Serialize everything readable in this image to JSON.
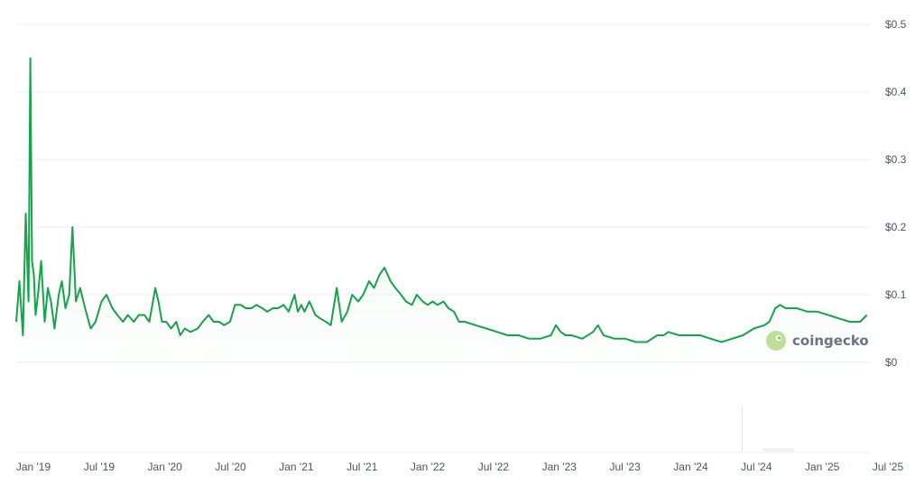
{
  "chart_data": {
    "type": "area",
    "title": "",
    "xlabel": "",
    "ylabel": "",
    "x_ticks": [
      "Jan '19",
      "Jul '19",
      "Jan '20",
      "Jul '20",
      "Jan '21",
      "Jul '21",
      "Jan '22",
      "Jul '22",
      "Jan '23",
      "Jul '23",
      "Jan '24",
      "Jul '24",
      "Jan '25",
      "Jul '25"
    ],
    "y_ticks": [
      "$0",
      "$0.1",
      "$0.2",
      "$0.3",
      "$0.4",
      "$0.5"
    ],
    "ylim": [
      0,
      0.5
    ],
    "xlim": [
      "2018-12-01",
      "2025-07-31"
    ],
    "line_color": "#16a34a",
    "grid": "horizontal",
    "series": [
      {
        "x": [
          "2018-12-01",
          "2018-12-10",
          "2018-12-20",
          "2018-12-28",
          "2019-01-05",
          "2019-01-10",
          "2019-01-15",
          "2019-01-20",
          "2019-01-25",
          "2019-02-01",
          "2019-02-10",
          "2019-02-20",
          "2019-03-01",
          "2019-03-10",
          "2019-03-20",
          "2019-04-01",
          "2019-04-10",
          "2019-04-20",
          "2019-05-01",
          "2019-05-10",
          "2019-05-20",
          "2019-06-01",
          "2019-06-15",
          "2019-07-01",
          "2019-07-15",
          "2019-08-01",
          "2019-08-15",
          "2019-09-01",
          "2019-09-15",
          "2019-10-01",
          "2019-10-15",
          "2019-11-01",
          "2019-11-15",
          "2019-12-01",
          "2019-12-15",
          "2020-01-01",
          "2020-01-10",
          "2020-01-20",
          "2020-02-01",
          "2020-02-15",
          "2020-03-01",
          "2020-03-12",
          "2020-03-25",
          "2020-04-10",
          "2020-05-01",
          "2020-05-15",
          "2020-06-01",
          "2020-06-15",
          "2020-07-01",
          "2020-07-15",
          "2020-08-01",
          "2020-08-15",
          "2020-09-01",
          "2020-09-15",
          "2020-10-01",
          "2020-10-15",
          "2020-11-01",
          "2020-11-15",
          "2020-12-01",
          "2020-12-15",
          "2021-01-01",
          "2021-01-15",
          "2021-02-01",
          "2021-02-10",
          "2021-02-20",
          "2021-03-01",
          "2021-03-15",
          "2021-04-01",
          "2021-04-15",
          "2021-05-01",
          "2021-05-15",
          "2021-06-01",
          "2021-06-15",
          "2021-07-01",
          "2021-07-15",
          "2021-08-01",
          "2021-08-15",
          "2021-09-01",
          "2021-09-15",
          "2021-10-01",
          "2021-10-15",
          "2021-11-01",
          "2021-11-15",
          "2021-12-01",
          "2021-12-15",
          "2022-01-01",
          "2022-01-15",
          "2022-02-01",
          "2022-02-15",
          "2022-03-01",
          "2022-03-15",
          "2022-04-01",
          "2022-04-15",
          "2022-05-01",
          "2022-05-15",
          "2022-06-01",
          "2022-07-01",
          "2022-08-01",
          "2022-09-01",
          "2022-10-01",
          "2022-11-01",
          "2022-12-01",
          "2023-01-01",
          "2023-02-01",
          "2023-02-15",
          "2023-03-01",
          "2023-03-15",
          "2023-04-01",
          "2023-05-01",
          "2023-06-01",
          "2023-06-15",
          "2023-07-01",
          "2023-08-01",
          "2023-09-01",
          "2023-10-01",
          "2023-11-01",
          "2023-12-01",
          "2023-12-20",
          "2024-01-01",
          "2024-02-01",
          "2024-03-01",
          "2024-04-01",
          "2024-05-01",
          "2024-06-01",
          "2024-07-01",
          "2024-08-01",
          "2024-09-01",
          "2024-10-01",
          "2024-10-15",
          "2024-11-01",
          "2024-11-15",
          "2024-12-01",
          "2025-01-01",
          "2025-02-01",
          "2025-03-01",
          "2025-04-01",
          "2025-05-01",
          "2025-06-01",
          "2025-07-01",
          "2025-07-20"
        ],
        "values": [
          0.06,
          0.12,
          0.04,
          0.22,
          0.09,
          0.45,
          0.15,
          0.13,
          0.07,
          0.1,
          0.15,
          0.06,
          0.11,
          0.09,
          0.05,
          0.1,
          0.12,
          0.08,
          0.1,
          0.2,
          0.09,
          0.11,
          0.08,
          0.05,
          0.06,
          0.09,
          0.1,
          0.08,
          0.07,
          0.06,
          0.07,
          0.06,
          0.07,
          0.07,
          0.06,
          0.11,
          0.09,
          0.06,
          0.06,
          0.05,
          0.06,
          0.04,
          0.05,
          0.045,
          0.05,
          0.06,
          0.07,
          0.06,
          0.06,
          0.055,
          0.06,
          0.085,
          0.085,
          0.08,
          0.08,
          0.085,
          0.08,
          0.075,
          0.08,
          0.08,
          0.085,
          0.075,
          0.1,
          0.075,
          0.085,
          0.075,
          0.09,
          0.07,
          0.065,
          0.06,
          0.055,
          0.11,
          0.06,
          0.075,
          0.1,
          0.09,
          0.1,
          0.12,
          0.11,
          0.13,
          0.14,
          0.12,
          0.11,
          0.1,
          0.09,
          0.085,
          0.1,
          0.09,
          0.085,
          0.09,
          0.085,
          0.09,
          0.08,
          0.075,
          0.06,
          0.06,
          0.055,
          0.05,
          0.045,
          0.04,
          0.04,
          0.035,
          0.035,
          0.04,
          0.055,
          0.045,
          0.04,
          0.04,
          0.035,
          0.045,
          0.055,
          0.04,
          0.035,
          0.035,
          0.03,
          0.03,
          0.04,
          0.04,
          0.045,
          0.04,
          0.04,
          0.04,
          0.035,
          0.03,
          0.035,
          0.04,
          0.05,
          0.055,
          0.06,
          0.08,
          0.085,
          0.08,
          0.08,
          0.075,
          0.075,
          0.07,
          0.065,
          0.06,
          0.06,
          0.07
        ]
      }
    ]
  },
  "watermark": {
    "text": "coingecko",
    "icon": "gecko-logo-icon"
  }
}
